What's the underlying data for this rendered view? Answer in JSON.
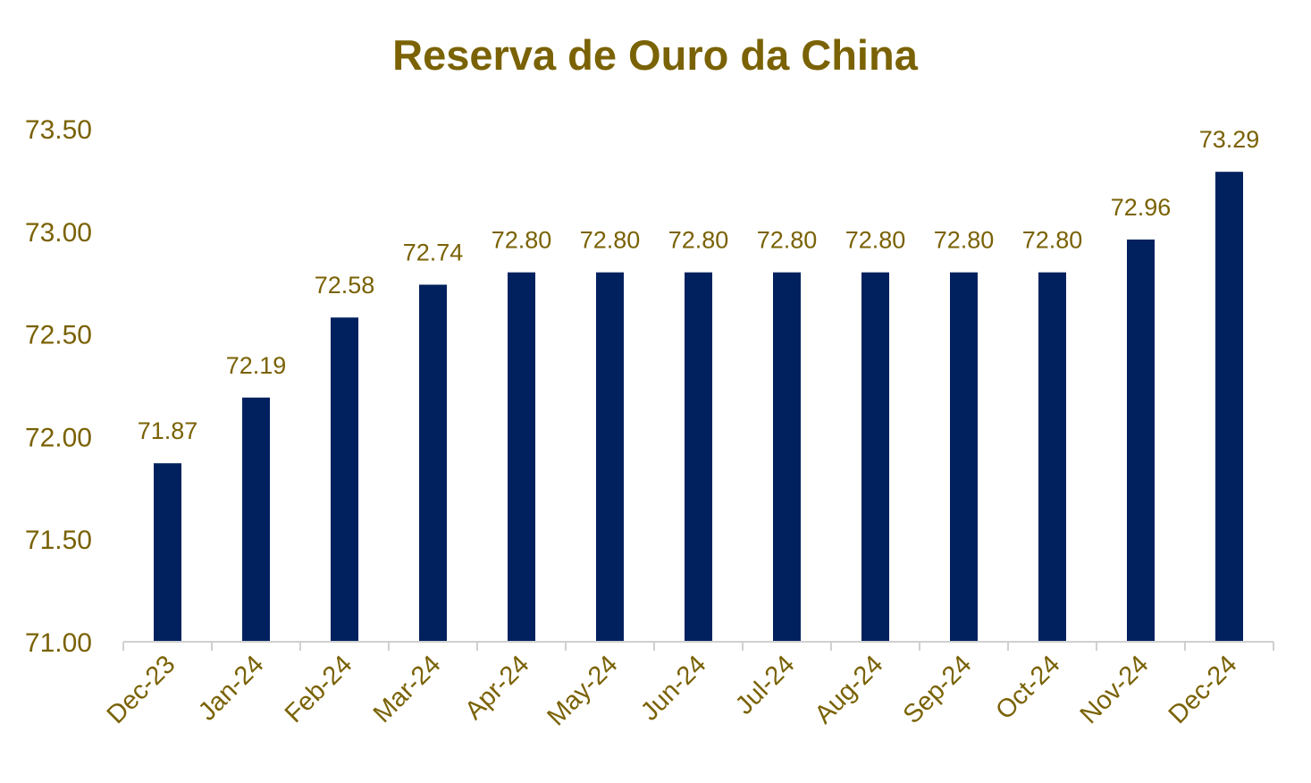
{
  "colors": {
    "bar": "#00215e",
    "text": "#7a6205",
    "axis": "#d0d0d0",
    "background": "#ffffff"
  },
  "chart_data": {
    "type": "bar",
    "title": "Reserva de Ouro da China",
    "xlabel": "",
    "ylabel": "",
    "ylim": [
      71.0,
      73.5
    ],
    "grid": false,
    "legend": "none",
    "yticks": [
      "71.00",
      "71.50",
      "72.00",
      "72.50",
      "73.00",
      "73.50"
    ],
    "categories": [
      "Dec-23",
      "Jan-24",
      "Feb-24",
      "Mar-24",
      "Apr-24",
      "May-24",
      "Jun-24",
      "Jul-24",
      "Aug-24",
      "Sep-24",
      "Oct-24",
      "Nov-24",
      "Dec-24"
    ],
    "values": [
      71.87,
      72.19,
      72.58,
      72.74,
      72.8,
      72.8,
      72.8,
      72.8,
      72.8,
      72.8,
      72.8,
      72.96,
      73.29
    ],
    "data_labels": [
      "71.87",
      "72.19",
      "72.58",
      "72.74",
      "72.80",
      "72.80",
      "72.80",
      "72.80",
      "72.80",
      "72.80",
      "72.80",
      "72.96",
      "73.29"
    ]
  }
}
